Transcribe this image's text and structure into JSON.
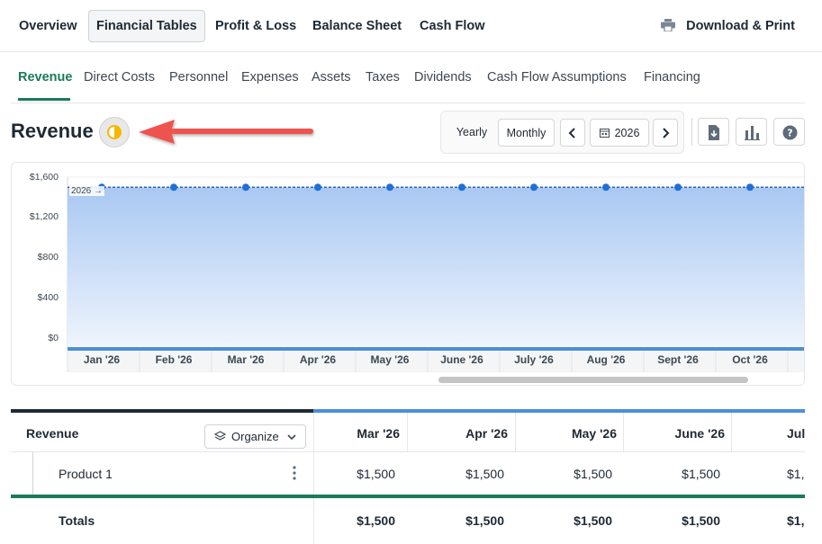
{
  "topnav": {
    "tabs": [
      "Overview",
      "Financial Tables",
      "Profit & Loss",
      "Balance Sheet",
      "Cash Flow"
    ],
    "active": "Financial Tables",
    "download_label": "Download & Print"
  },
  "subnav": {
    "tabs": [
      "Revenue",
      "Direct Costs",
      "Personnel",
      "Expenses",
      "Assets",
      "Taxes",
      "Dividends",
      "Cash Flow Assumptions",
      "Financing"
    ],
    "active": "Revenue"
  },
  "page": {
    "title": "Revenue"
  },
  "controls": {
    "yearly_label": "Yearly",
    "monthly_label": "Monthly",
    "year": "2026"
  },
  "colors": {
    "accent_green": "#1b7a5a",
    "chart_blue": "#4a90d9",
    "point_blue": "#1f6fd6",
    "arrow_red": "#ef5350"
  },
  "chart_data": {
    "type": "area",
    "y_ticks": [
      "$1,600",
      "$1,200",
      "$800",
      "$400",
      "$0"
    ],
    "ylim": [
      0,
      1600
    ],
    "categories": [
      "Jan '26",
      "Feb '26",
      "Mar '26",
      "Apr '26",
      "May '26",
      "June '26",
      "July '26",
      "Aug '26",
      "Sept '26",
      "Oct '26"
    ],
    "series": [
      {
        "name": "2026",
        "values": [
          1500,
          1500,
          1500,
          1500,
          1500,
          1500,
          1500,
          1500,
          1500,
          1500
        ]
      }
    ],
    "grid": true
  },
  "table": {
    "header_label": "Revenue",
    "organize_label": "Organize",
    "columns": [
      "Mar '26",
      "Apr '26",
      "May '26",
      "June '26",
      "Jul"
    ],
    "rows": [
      {
        "label": "Product 1",
        "values": [
          "$1,500",
          "$1,500",
          "$1,500",
          "$1,500",
          "$1,"
        ]
      }
    ],
    "totals": {
      "label": "Totals",
      "values": [
        "$1,500",
        "$1,500",
        "$1,500",
        "$1,500",
        "$1,"
      ]
    }
  }
}
